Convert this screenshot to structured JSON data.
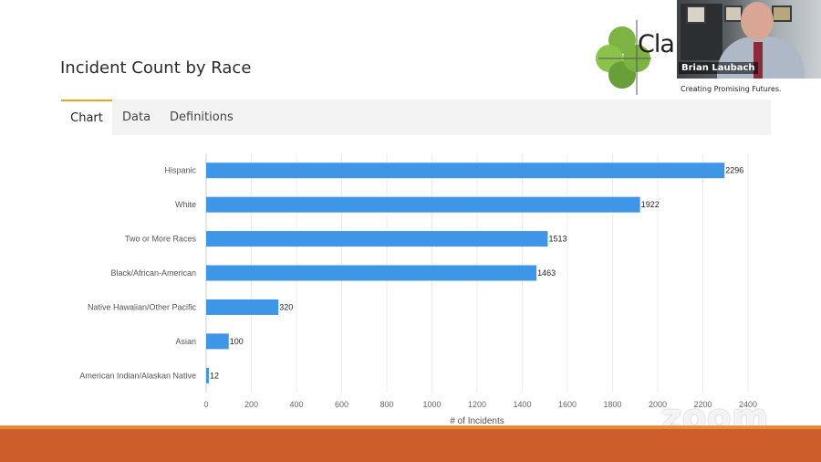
{
  "slide": {
    "title": "Incident Count by Race"
  },
  "tabs": [
    {
      "label": "Chart",
      "active": true
    },
    {
      "label": "Data",
      "active": false
    },
    {
      "label": "Definitions",
      "active": false
    }
  ],
  "logo": {
    "text": "Cla",
    "tagline": "Creating Promising Futures."
  },
  "video": {
    "participant_name": "Brian Laubach"
  },
  "watermark": {
    "text": "zoom"
  },
  "colors": {
    "bar": "#3f95e6",
    "accent_tab": "#f0a21b",
    "bottom_strip": "#cd5d2a",
    "logo_green": "#7cb342"
  },
  "chart_data": {
    "type": "bar",
    "orientation": "horizontal",
    "categories": [
      "Hispanic",
      "White",
      "Two or More Races",
      "Black/African-American",
      "Native Hawaiian/Other Pacific",
      "Asian",
      "American Indian/Alaskan Native"
    ],
    "values": [
      2296,
      1922,
      1513,
      1463,
      320,
      100,
      12
    ],
    "xlabel": "# of Incidents",
    "ylabel": "",
    "xlim": [
      0,
      2400
    ],
    "xticks": [
      0,
      200,
      400,
      600,
      800,
      1000,
      1200,
      1400,
      1600,
      1800,
      2000,
      2200,
      2400
    ],
    "grid": true,
    "data_labels": true
  }
}
